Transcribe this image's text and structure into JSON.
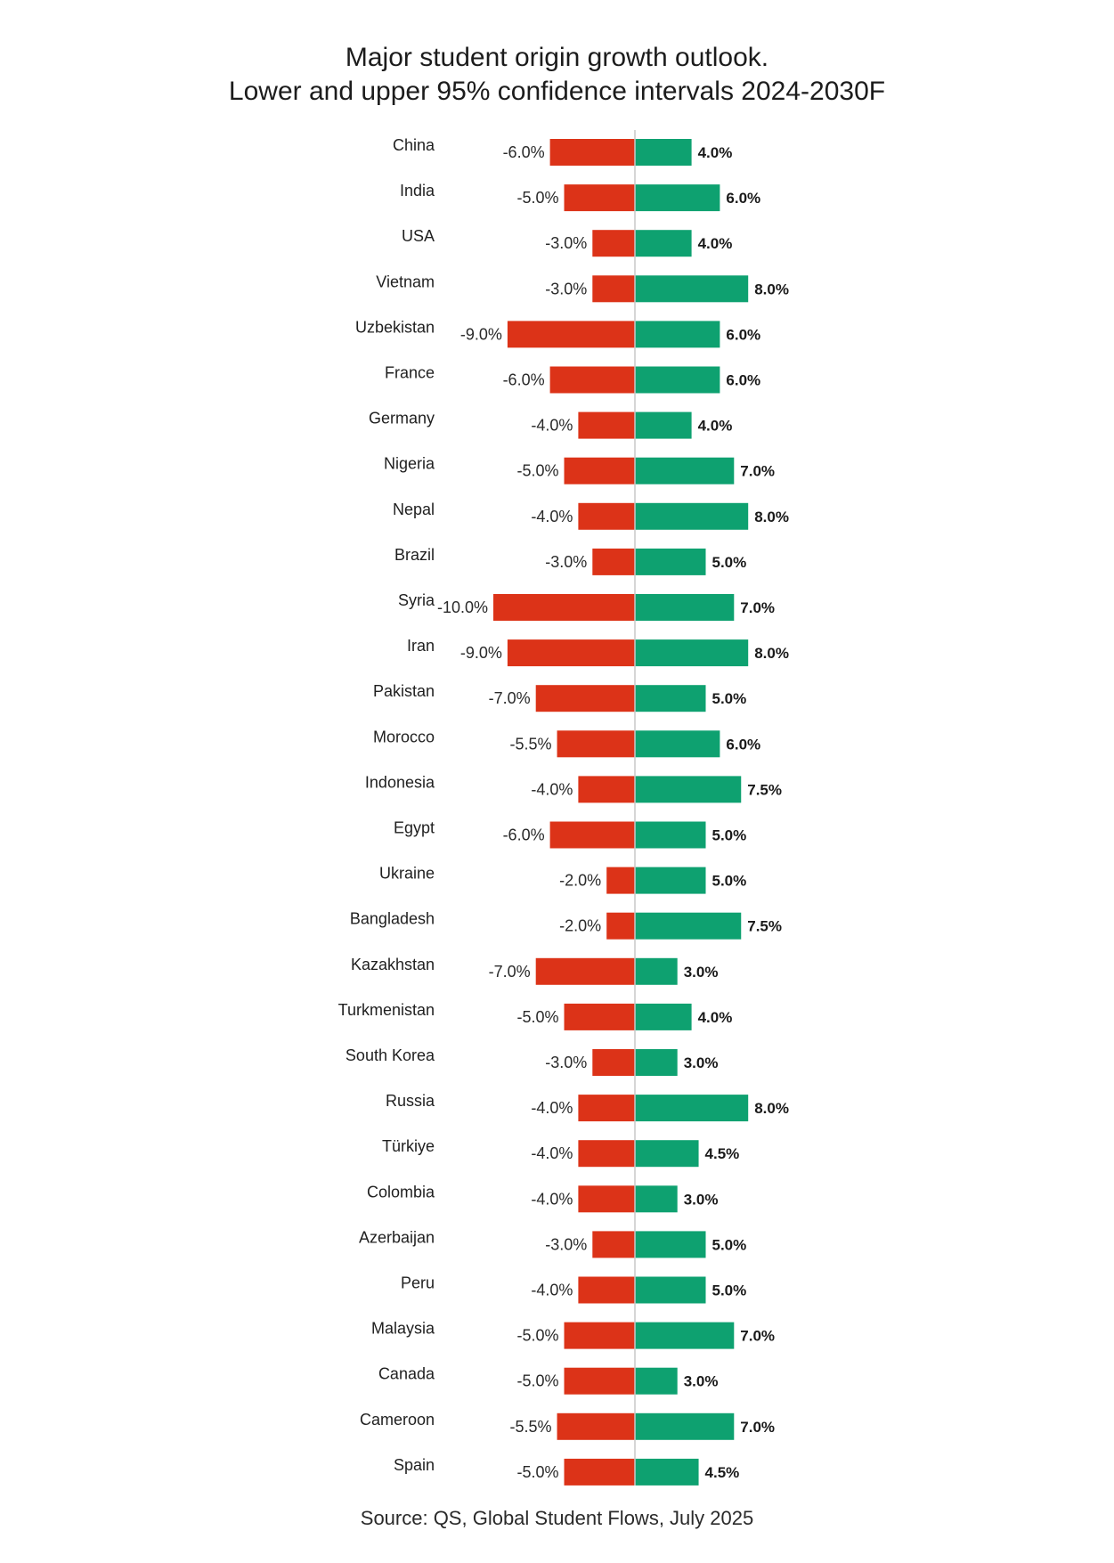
{
  "chart_data": {
    "type": "bar",
    "title_lines": [
      "Major student origin growth outlook.",
      "Lower and upper 95% confidence intervals 2024-2030F"
    ],
    "source": "Source: QS, Global Student Flows, July 2025",
    "categories": [
      "China",
      "India",
      "USA",
      "Vietnam",
      "Uzbekistan",
      "France",
      "Germany",
      "Nigeria",
      "Nepal",
      "Brazil",
      "Syria",
      "Iran",
      "Pakistan",
      "Morocco",
      "Indonesia",
      "Egypt",
      "Ukraine",
      "Bangladesh",
      "Kazakhstan",
      "Turkmenistan",
      "South Korea",
      "Russia",
      "Türkiye",
      "Colombia",
      "Azerbaijan",
      "Peru",
      "Malaysia",
      "Canada",
      "Cameroon",
      "Spain"
    ],
    "series": [
      {
        "values": [
          -6.0,
          -5.0,
          -3.0,
          -3.0,
          -9.0,
          -6.0,
          -4.0,
          -5.0,
          -4.0,
          -3.0,
          -10.0,
          -9.0,
          -7.0,
          -5.5,
          -4.0,
          -6.0,
          -2.0,
          -2.0,
          -7.0,
          -5.0,
          -3.0,
          -4.0,
          -4.0,
          -4.0,
          -3.0,
          -4.0,
          -5.0,
          -5.0,
          -5.5,
          -5.0
        ],
        "labels": [
          "-6.0%",
          "-5.0%",
          "-3.0%",
          "-3.0%",
          "-9.0%",
          "-6.0%",
          "-4.0%",
          "-5.0%",
          "-4.0%",
          "-3.0%",
          "-10.0%",
          "-9.0%",
          "-7.0%",
          "-5.5%",
          "-4.0%",
          "-6.0%",
          "-2.0%",
          "-2.0%",
          "-7.0%",
          "-5.0%",
          "-3.0%",
          "-4.0%",
          "-4.0%",
          "-4.0%",
          "-3.0%",
          "-4.0%",
          "-5.0%",
          "-5.0%",
          "-5.5%",
          "-5.0%"
        ],
        "color": "#dc3318"
      },
      {
        "values": [
          4.0,
          6.0,
          4.0,
          8.0,
          6.0,
          6.0,
          4.0,
          7.0,
          8.0,
          5.0,
          7.0,
          8.0,
          5.0,
          6.0,
          7.5,
          5.0,
          5.0,
          7.5,
          3.0,
          4.0,
          3.0,
          8.0,
          4.5,
          3.0,
          5.0,
          5.0,
          7.0,
          3.0,
          7.0,
          4.5
        ],
        "labels": [
          "4.0%",
          "6.0%",
          "4.0%",
          "8.0%",
          "6.0%",
          "6.0%",
          "4.0%",
          "7.0%",
          "8.0%",
          "5.0%",
          "7.0%",
          "8.0%",
          "5.0%",
          "6.0%",
          "7.5%",
          "5.0%",
          "5.0%",
          "7.5%",
          "3.0%",
          "4.0%",
          "3.0%",
          "8.0%",
          "4.5%",
          "3.0%",
          "5.0%",
          "5.0%",
          "7.0%",
          "3.0%",
          "7.0%",
          "4.5%"
        ],
        "color": "#0ea170"
      }
    ],
    "xlim": [
      -10,
      8
    ],
    "grid": false,
    "legend": "none",
    "zero_line_color": "#c8c8c8"
  }
}
